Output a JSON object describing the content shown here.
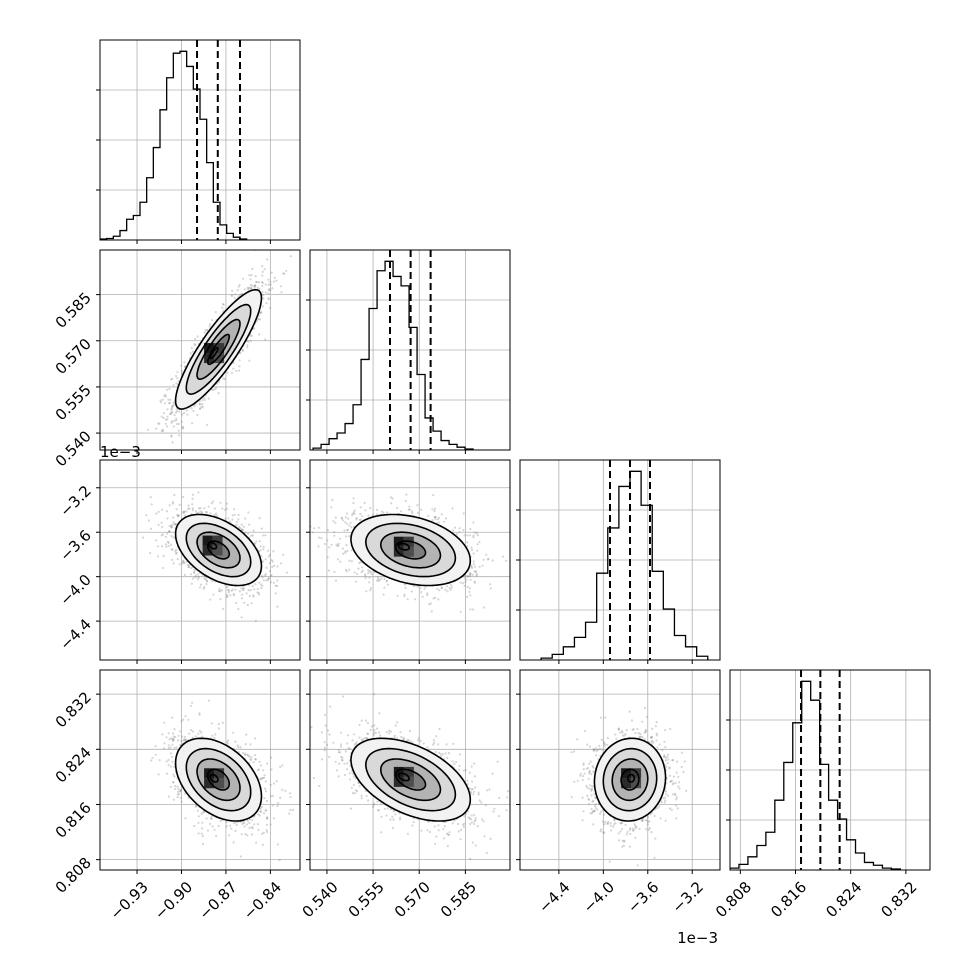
{
  "chart_data": {
    "type": "corner",
    "parameters": [
      {
        "range": [
          -0.955,
          -0.82
        ],
        "ticks": [
          -0.93,
          -0.9,
          -0.87,
          -0.84
        ],
        "tick_labels": [
          "−0.93",
          "−0.90",
          "−0.87",
          "−0.84"
        ],
        "offset_label": "",
        "quantiles": [
          -0.8895,
          -0.8755,
          -0.8605
        ],
        "hist_edges_start": -0.955,
        "hist_bin_width": 0.0045,
        "hist_counts": [
          0.5,
          0.8,
          2,
          5,
          11,
          13,
          20,
          33,
          49,
          69,
          86,
          99,
          100,
          92,
          80,
          64,
          41,
          20,
          8,
          3.5,
          1.5,
          0.5
        ]
      },
      {
        "range": [
          0.5345,
          0.5995
        ],
        "ticks": [
          0.54,
          0.555,
          0.57,
          0.585
        ],
        "tick_labels": [
          "0.540",
          "0.555",
          "0.570",
          "0.585"
        ],
        "offset_label": "",
        "quantiles": [
          0.5605,
          0.5672,
          0.5737
        ],
        "hist_edges_start": 0.5355,
        "hist_bin_width": 0.0026,
        "hist_counts": [
          1,
          3,
          6,
          9,
          14,
          24,
          48,
          75,
          95,
          100,
          92,
          87,
          65,
          40,
          17,
          10,
          5,
          3,
          1.5,
          0.5
        ]
      },
      {
        "range": [
          -4.75,
          -2.95
        ],
        "ticks": [
          -4.4,
          -4.0,
          -3.6,
          -3.2
        ],
        "tick_labels": [
          "−4.4",
          "−4.0",
          "−3.6",
          "−3.2"
        ],
        "offset_label": "1e−3",
        "quantiles": [
          -3.94,
          -3.76,
          -3.58
        ],
        "hist_edges_start": -4.56,
        "hist_bin_width": 0.1,
        "hist_counts": [
          1,
          3,
          7,
          12,
          20,
          46,
          70,
          92,
          100,
          82,
          47,
          27,
          13,
          7,
          2
        ]
      },
      {
        "range": [
          0.8065,
          0.8355
        ],
        "ticks": [
          0.808,
          0.816,
          0.824,
          0.832
        ],
        "tick_labels": [
          "0.808",
          "0.816",
          "0.824",
          "0.832"
        ],
        "offset_label": "",
        "quantiles": [
          0.8168,
          0.8196,
          0.8224
        ],
        "hist_edges_start": 0.8065,
        "hist_bin_width": 0.0013,
        "hist_counts": [
          1,
          3,
          7,
          13,
          20,
          37,
          57,
          78,
          100,
          90,
          56,
          37,
          27,
          16,
          9,
          4,
          2.5,
          1,
          0.5
        ]
      }
    ],
    "pairs": [
      {
        "row": 1,
        "col": 0,
        "mean": [
          -0.875,
          0.5672
        ],
        "sd": [
          0.0145,
          0.0097
        ],
        "corr": 0.86,
        "peak": [
          -0.878,
          0.566
        ],
        "levels_sd": [
          0.5,
          1.0,
          1.5,
          2.0
        ]
      },
      {
        "row": 2,
        "col": 0,
        "mean": [
          -0.875,
          -3.76
        ],
        "sd": [
          0.0145,
          0.16
        ],
        "corr": -0.45,
        "peak": [
          -0.879,
          -3.72
        ],
        "levels_sd": [
          0.5,
          1.0,
          1.5,
          2.0
        ]
      },
      {
        "row": 2,
        "col": 1,
        "mean": [
          0.5672,
          -3.76
        ],
        "sd": [
          0.0097,
          0.16
        ],
        "corr": -0.3,
        "peak": [
          0.565,
          -3.73
        ],
        "levels_sd": [
          0.5,
          1.0,
          1.5,
          2.0
        ]
      },
      {
        "row": 3,
        "col": 0,
        "mean": [
          -0.875,
          0.8196
        ],
        "sd": [
          0.0145,
          0.003
        ],
        "corr": -0.4,
        "peak": [
          -0.878,
          0.8198
        ],
        "levels_sd": [
          0.5,
          1.0,
          1.5,
          2.0
        ]
      },
      {
        "row": 3,
        "col": 1,
        "mean": [
          0.5672,
          0.8196
        ],
        "sd": [
          0.0097,
          0.003
        ],
        "corr": -0.48,
        "peak": [
          0.565,
          0.82
        ],
        "levels_sd": [
          0.5,
          1.0,
          1.5,
          2.0
        ]
      },
      {
        "row": 3,
        "col": 2,
        "mean": [
          -3.76,
          0.8196
        ],
        "sd": [
          0.16,
          0.003
        ],
        "corr": 0.05,
        "peak": [
          -3.75,
          0.8198
        ],
        "levels_sd": [
          0.5,
          1.0,
          1.5,
          2.0
        ]
      }
    ],
    "grid": true,
    "colors": {
      "line": "#000000",
      "grid": "#b0b0b0",
      "points": "#888888"
    }
  }
}
